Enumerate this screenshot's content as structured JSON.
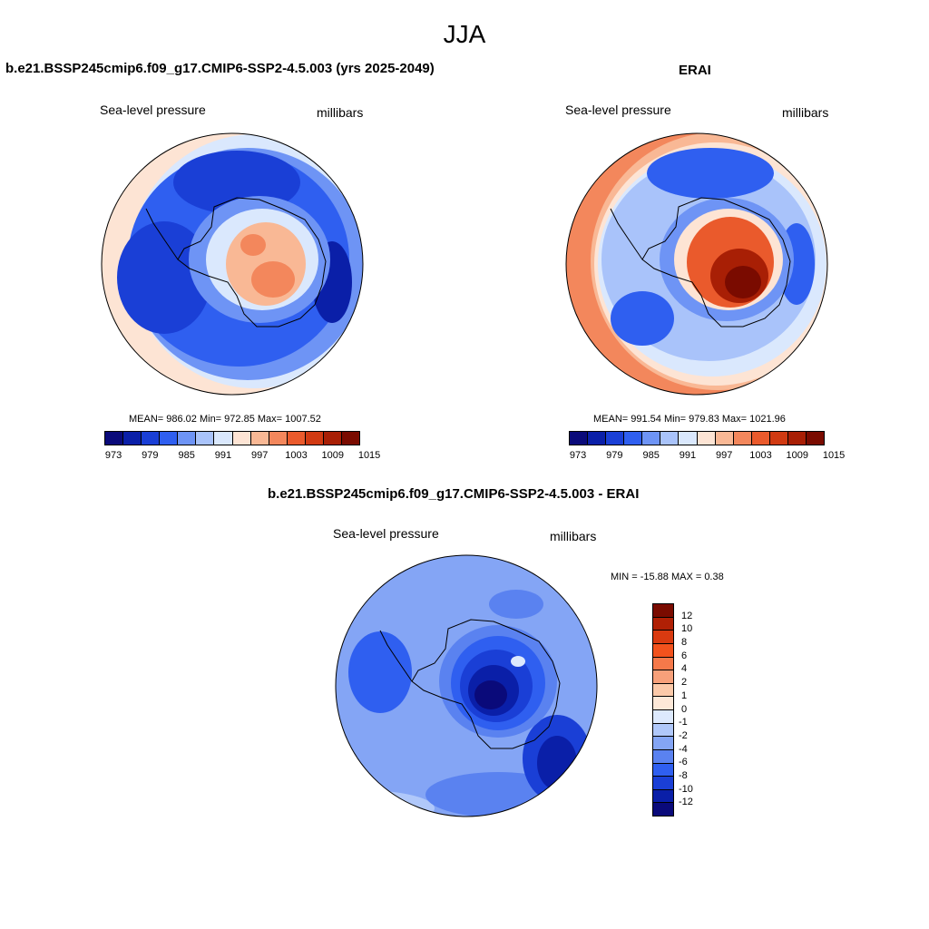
{
  "main_title": "JJA",
  "left_panel": {
    "title": "b.e21.BSSP245cmip6.f09_g17.CMIP6-SSP2-4.5.003 (yrs 2025-2049)",
    "variable": "Sea-level pressure",
    "units": "millibars",
    "stats": "MEAN= 986.02   Min= 972.85   Max= 1007.52"
  },
  "right_panel": {
    "title": "ERAI",
    "variable": "Sea-level pressure",
    "units": "millibars",
    "stats": "MEAN= 991.54   Min= 979.83   Max= 1021.96"
  },
  "diff_panel": {
    "title": "b.e21.BSSP245cmip6.f09_g17.CMIP6-SSP2-4.5.003 - ERAI",
    "variable": "Sea-level pressure",
    "units": "millibars",
    "stats": "MIN = -15.88 MAX =   0.38"
  },
  "colorbar_ticks": [
    "973",
    "979",
    "985",
    "991",
    "997",
    "1003",
    "1009",
    "1015"
  ],
  "colorbar_colors": [
    "#0a0a7a",
    "#0a1fa8",
    "#1a3fd6",
    "#2f5ff0",
    "#6e94f5",
    "#a9c3fa",
    "#dae8fd",
    "#fde4d4",
    "#f9b895",
    "#f3875c",
    "#ea5a2c",
    "#d13a12",
    "#a81f05",
    "#7a0b00"
  ],
  "diff_colorbar_ticks": [
    "12",
    "10",
    "8",
    "6",
    "4",
    "2",
    "1",
    "0",
    "-1",
    "-2",
    "-4",
    "-6",
    "-8",
    "-10",
    "-12"
  ],
  "diff_colorbar_colors": [
    "#7a0b00",
    "#b02005",
    "#d93a10",
    "#f2521d",
    "#f6794a",
    "#f7a07a",
    "#fbc9a9",
    "#fde8d8",
    "#dde9fd",
    "#b0c8fa",
    "#84a5f5",
    "#5a82f0",
    "#2f5ff0",
    "#1a3fd6",
    "#0a1fa8",
    "#0a0a7a"
  ],
  "chart_data": [
    {
      "type": "heatmap",
      "title": "b.e21.BSSP245cmip6.f09_g17.CMIP6-SSP2-4.5.003 (yrs 2025-2049)",
      "variable": "Sea-level pressure",
      "units": "millibars",
      "projection": "south-polar-stereographic",
      "mean": 986.02,
      "min": 972.85,
      "max": 1007.52,
      "contour_levels": [
        973,
        976,
        979,
        982,
        985,
        988,
        991,
        994,
        997,
        1000,
        1003,
        1006,
        1009,
        1012,
        1015
      ]
    },
    {
      "type": "heatmap",
      "title": "ERAI",
      "variable": "Sea-level pressure",
      "units": "millibars",
      "projection": "south-polar-stereographic",
      "mean": 991.54,
      "min": 979.83,
      "max": 1021.96,
      "contour_levels": [
        973,
        976,
        979,
        982,
        985,
        988,
        991,
        994,
        997,
        1000,
        1003,
        1006,
        1009,
        1012,
        1015
      ]
    },
    {
      "type": "heatmap",
      "title": "b.e21.BSSP245cmip6.f09_g17.CMIP6-SSP2-4.5.003 - ERAI",
      "variable": "Sea-level pressure",
      "units": "millibars",
      "projection": "south-polar-stereographic",
      "min": -15.88,
      "max": 0.38,
      "contour_levels": [
        -12,
        -10,
        -8,
        -6,
        -4,
        -2,
        -1,
        0,
        1,
        2,
        4,
        6,
        8,
        10,
        12
      ]
    }
  ]
}
